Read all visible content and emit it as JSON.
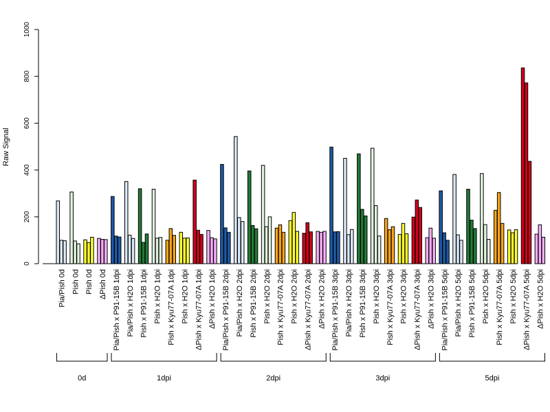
{
  "chart_data": {
    "type": "bar",
    "ylabel": "Raw Signal",
    "ylim": [
      0,
      1000
    ],
    "yticks": [
      0,
      200,
      400,
      600,
      800,
      1000
    ],
    "bars_per_category": 3,
    "categories": [
      {
        "label": "Pia/Pish 0d",
        "color": "#dbe8f7",
        "values": [
          268,
          100,
          98
        ]
      },
      {
        "label": "Pish 0d",
        "color": "#e2f3df",
        "values": [
          306,
          97,
          85
        ]
      },
      {
        "label": "Pish 0d",
        "color": "#ffff33",
        "values": [
          102,
          90,
          113
        ]
      },
      {
        "label": "ΔPish 0d",
        "color": "#f7aef7",
        "values": [
          108,
          104,
          103
        ]
      },
      {
        "label": "Pia/Pish x P91-15B 1dpi",
        "color": "#1e5aa6",
        "values": [
          287,
          118,
          114
        ]
      },
      {
        "label": "Pia/Pish x H2O 1dpi",
        "color": "#dbe8f7",
        "values": [
          351,
          122,
          108
        ]
      },
      {
        "label": "Pish x P91-15B 1dpi",
        "color": "#247a37",
        "values": [
          320,
          91,
          127
        ]
      },
      {
        "label": "Pish x H2O 1dpi",
        "color": "#e2f3df",
        "values": [
          318,
          109,
          112
        ]
      },
      {
        "label": "Pish x Kyu77-07A 1dpi",
        "color": "#f8a51b",
        "values": [
          100,
          150,
          121
        ]
      },
      {
        "label": "Pish x H2O 1dpi",
        "color": "#ffff33",
        "values": [
          134,
          109,
          110
        ]
      },
      {
        "label": "ΔPish x Kyu77-07A 1dpi",
        "color": "#d0021b",
        "values": [
          357,
          143,
          125
        ]
      },
      {
        "label": "ΔPish x H2O 1dpi",
        "color": "#f7aef7",
        "values": [
          142,
          111,
          106
        ]
      },
      {
        "label": "Pia/Pish x P91-15B 2dpi",
        "color": "#1e5aa6",
        "values": [
          424,
          153,
          134
        ]
      },
      {
        "label": "Pia/Pish x H2O 2dpi",
        "color": "#dbe8f7",
        "values": [
          543,
          197,
          180
        ]
      },
      {
        "label": "Pish x P91-15B 2dpi",
        "color": "#247a37",
        "values": [
          396,
          163,
          149
        ]
      },
      {
        "label": "Pish x H2O 2dpi",
        "color": "#e2f3df",
        "values": [
          420,
          158,
          200
        ]
      },
      {
        "label": "Pish x Kyu77-07A 2dpi",
        "color": "#f8a51b",
        "values": [
          152,
          166,
          134
        ]
      },
      {
        "label": "Pish x H2O 2dpi",
        "color": "#ffff33",
        "values": [
          184,
          219,
          138
        ]
      },
      {
        "label": "ΔPish x Kyu77-07A 2dpi",
        "color": "#d0021b",
        "values": [
          130,
          175,
          136
        ]
      },
      {
        "label": "ΔPish x H2O 2dpi",
        "color": "#f7aef7",
        "values": [
          138,
          134,
          138
        ]
      },
      {
        "label": "Pia/Pish x P91-15B 3dpi",
        "color": "#1e5aa6",
        "values": [
          498,
          136,
          137
        ]
      },
      {
        "label": "Pia/Pish x H2O 3dpi",
        "color": "#dbe8f7",
        "values": [
          450,
          124,
          146
        ]
      },
      {
        "label": "Pish x P91-15B 3dpi",
        "color": "#247a37",
        "values": [
          469,
          232,
          204
        ]
      },
      {
        "label": "Pish x H2O 3dpi",
        "color": "#e2f3df",
        "values": [
          493,
          248,
          118
        ]
      },
      {
        "label": "Pish x Kyu77-07A 3dpi",
        "color": "#f8a51b",
        "values": [
          193,
          145,
          158
        ]
      },
      {
        "label": "Pish x H2O 3dpi",
        "color": "#ffff33",
        "values": [
          125,
          172,
          128
        ]
      },
      {
        "label": "ΔPish x Kyu77-07A 3dpi",
        "color": "#d0021b",
        "values": [
          199,
          272,
          240
        ]
      },
      {
        "label": "ΔPish x H2O 3dpi",
        "color": "#f7aef7",
        "values": [
          111,
          152,
          109
        ]
      },
      {
        "label": "Pia/Pish x P91-15B 5dpi",
        "color": "#1e5aa6",
        "values": [
          311,
          132,
          100
        ]
      },
      {
        "label": "Pia/Pish x H2O 5dpi",
        "color": "#dbe8f7",
        "values": [
          381,
          123,
          100
        ]
      },
      {
        "label": "Pish x P91-15B 5dpi",
        "color": "#247a37",
        "values": [
          318,
          186,
          150
        ]
      },
      {
        "label": "Pish x H2O 5dpi",
        "color": "#e2f3df",
        "values": [
          385,
          167,
          104
        ]
      },
      {
        "label": "Pish x Kyu77-07A 5dpi",
        "color": "#f8a51b",
        "values": [
          228,
          304,
          172
        ]
      },
      {
        "label": "Pish x H2O 5dpi",
        "color": "#ffff33",
        "values": [
          144,
          132,
          145
        ]
      },
      {
        "label": "ΔPish x Kyu77-07A 5dpi",
        "color": "#d0021b",
        "values": [
          836,
          772,
          437
        ]
      },
      {
        "label": "ΔPish x H2O 5dpi",
        "color": "#f7aef7",
        "values": [
          126,
          166,
          113
        ]
      }
    ],
    "groups": [
      {
        "label": "0d",
        "from": 0,
        "to": 3
      },
      {
        "label": "1dpi",
        "from": 4,
        "to": 11
      },
      {
        "label": "2dpi",
        "from": 12,
        "to": 19
      },
      {
        "label": "3dpi",
        "from": 20,
        "to": 27
      },
      {
        "label": "5dpi",
        "from": 28,
        "to": 35
      }
    ]
  }
}
